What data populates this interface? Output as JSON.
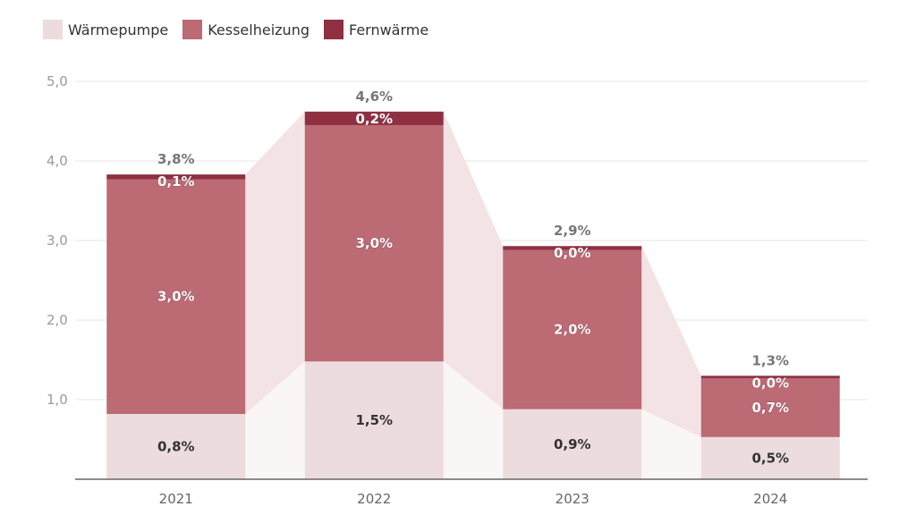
{
  "legend": [
    {
      "label": "Wärmepumpe",
      "color": "#ecdcdd"
    },
    {
      "label": "Kesselheizung",
      "color": "#bc6a74"
    },
    {
      "label": "Fernwärme",
      "color": "#8f2f42"
    }
  ],
  "chart_data": {
    "type": "bar",
    "stacked": true,
    "categories": [
      "2021",
      "2022",
      "2023",
      "2024"
    ],
    "ylim": [
      0,
      5
    ],
    "yticks": [
      "5,0",
      "4,0",
      "3,0",
      "2,0",
      "1,0"
    ],
    "ytick_values": [
      5,
      4,
      3,
      2,
      1
    ],
    "series": [
      {
        "name": "Wärmepumpe",
        "values": [
          0.82,
          1.48,
          0.88,
          0.53
        ],
        "labels": [
          "0,8%",
          "1,5%",
          "0,9%",
          "0,5%"
        ],
        "color": "#ecdcdd"
      },
      {
        "name": "Kesselheizung",
        "values": [
          2.95,
          2.97,
          2.0,
          0.74
        ],
        "labels": [
          "3,0%",
          "3,0%",
          "2,0%",
          "0,7%"
        ],
        "color": "#bc6a74"
      },
      {
        "name": "Fernwärme",
        "values": [
          0.06,
          0.17,
          0.05,
          0.03
        ],
        "labels": [
          "0,1%",
          "0,2%",
          "0,0%",
          "0,0%"
        ],
        "color": "#8f2f42"
      }
    ],
    "totals": [
      "3,8%",
      "4,6%",
      "2,9%",
      "1,3%"
    ],
    "grid": true,
    "legend_position": "top-left"
  }
}
